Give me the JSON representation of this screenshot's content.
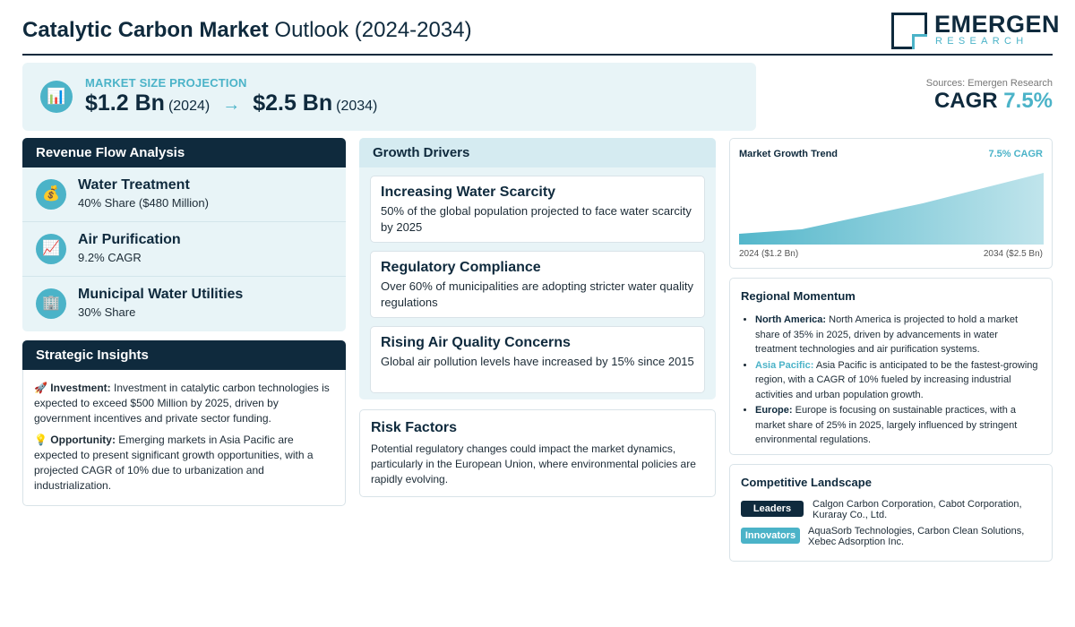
{
  "header": {
    "title_bold": "Catalytic Carbon Market",
    "title_rest": " Outlook (2024-2034)",
    "logo_name": "EMERGEN",
    "logo_sub": "RESEARCH"
  },
  "projection": {
    "icon": "bar-chart-icon",
    "label": "MARKET SIZE PROJECTION",
    "start_value": "$1.2 Bn",
    "start_year": "(2024)",
    "arrow": "→",
    "end_value": "$2.5 Bn",
    "end_year": "(2034)"
  },
  "sources": "Sources: Emergen Research",
  "cagr": {
    "label": "CAGR",
    "value": "7.5%"
  },
  "revenue": {
    "title": "Revenue Flow Analysis",
    "items": [
      {
        "icon": "money-bag-icon",
        "glyph": "💰",
        "title": "Water Treatment",
        "sub": "40% Share ($480 Million)"
      },
      {
        "icon": "trend-chart-icon",
        "glyph": "📈",
        "title": "Air Purification",
        "sub": "9.2% CAGR"
      },
      {
        "icon": "building-icon",
        "glyph": "🏢",
        "title": "Municipal Water Utilities",
        "sub": "30% Share"
      }
    ]
  },
  "insights": {
    "title": "Strategic Insights",
    "items": [
      {
        "glyph": "🚀",
        "label": "Investment:",
        "text": " Investment in catalytic carbon technologies is expected to exceed $500 Million by 2025, driven by government incentives and private sector funding."
      },
      {
        "glyph": "💡",
        "label": "Opportunity:",
        "text": " Emerging markets in Asia Pacific are expected to present significant growth opportunities, with a projected CAGR of 10% due to urbanization and industrialization."
      }
    ]
  },
  "drivers": {
    "title": "Growth Drivers",
    "items": [
      {
        "title": "Increasing Water Scarcity",
        "text": "50% of the global population projected to face water scarcity by 2025"
      },
      {
        "title": "Regulatory Compliance",
        "text": "Over 60% of municipalities are adopting stricter water quality regulations"
      },
      {
        "title": "Rising Air Quality Concerns",
        "text": "Global air pollution levels have increased by 15% since 2015"
      }
    ]
  },
  "risk": {
    "title": "Risk Factors",
    "text": "Potential regulatory changes could impact the market dynamics, particularly in the European Union, where environmental policies are rapidly evolving."
  },
  "trend": {
    "title": "Market Growth Trend",
    "cagr": "7.5% CAGR",
    "left_label": "2024 ($1.2 Bn)",
    "right_label": "2034 ($2.5 Bn)",
    "colors": {
      "fill_start": "#4bb3c8",
      "fill_end": "#e8f4f7"
    }
  },
  "regional": {
    "title": "Regional Momentum",
    "items": [
      {
        "label": "North America:",
        "text": " North America is projected to hold a market share of 35% in 2025, driven by advancements in water treatment technologies and air purification systems."
      },
      {
        "label": "Asia Pacific:",
        "text": " Asia Pacific is anticipated to be the fastest-growing region, with a CAGR of 10% fueled by increasing industrial activities and urban population growth."
      },
      {
        "label": "Europe:",
        "text": " Europe is focusing on sustainable practices, with a market share of 25% in 2025, largely influenced by stringent environmental regulations."
      }
    ]
  },
  "competitive": {
    "title": "Competitive Landscape",
    "leaders_label": "Leaders",
    "leaders_text": "Calgon Carbon Corporation, Cabot Corporation, Kuraray Co., Ltd.",
    "innovators_label": "Innovators",
    "innovators_text": "AquaSorb Technologies, Carbon Clean Solutions, Xebec Adsorption Inc."
  },
  "colors": {
    "navy": "#0f2a3d",
    "teal": "#4bb3c8",
    "panel_bg": "#e8f4f7"
  }
}
